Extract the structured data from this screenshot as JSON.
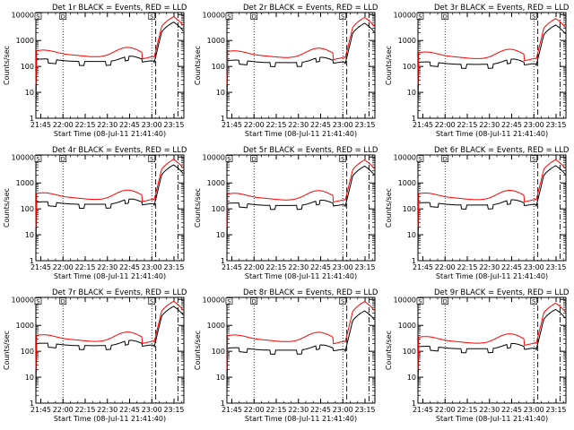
{
  "chart_data": {
    "type": "line",
    "common": {
      "xlabel": "Start Time (08-Jul-11 21:41:40)",
      "ylabel": "Counts/sec",
      "x_ticks": [
        "21:45",
        "22:00",
        "22:15",
        "22:30",
        "22:45",
        "23:00",
        "23:15"
      ],
      "x_tick_minutes": [
        3.33,
        18.33,
        33.33,
        48.33,
        63.33,
        78.33,
        93.33
      ],
      "x_range_minutes": [
        0,
        100
      ],
      "y_scale": "log",
      "y_ticks": [
        "1",
        "10",
        "100",
        "1000",
        "10000"
      ],
      "y_range": [
        1,
        12000
      ],
      "box_labels": [
        "S",
        "D",
        "S"
      ],
      "box_label_minutes": [
        1.5,
        18.33,
        78.33
      ],
      "vlines_dotted_minutes": [
        18.33,
        78.33
      ],
      "vline_dashed_minutes": 81.0,
      "vline_dashdot_minutes": 96.0,
      "series_colors": {
        "events": "#000000",
        "lld": "#ff0000"
      }
    },
    "panels": [
      {
        "title": "Det 1r BLACK = Events, RED = LLD",
        "lld_base": 230,
        "ev_base": 155
      },
      {
        "title": "Det 2r BLACK = Events, RED = LLD",
        "lld_base": 215,
        "ev_base": 140
      },
      {
        "title": "Det 3r BLACK = Events, RED = LLD",
        "lld_base": 195,
        "ev_base": 120
      },
      {
        "title": "Det 4r BLACK = Events, RED = LLD",
        "lld_base": 225,
        "ev_base": 150
      },
      {
        "title": "Det 5r BLACK = Events, RED = LLD",
        "lld_base": 215,
        "ev_base": 135
      },
      {
        "title": "Det 6r BLACK = Events, RED = LLD",
        "lld_base": 220,
        "ev_base": 140
      },
      {
        "title": "Det 7r BLACK = Events, RED = LLD",
        "lld_base": 235,
        "ev_base": 165
      },
      {
        "title": "Det 8r BLACK = Events, RED = LLD",
        "lld_base": 230,
        "ev_base": 110
      },
      {
        "title": "Det 9r BLACK = Events, RED = LLD",
        "lld_base": 200,
        "ev_base": 125
      }
    ]
  }
}
